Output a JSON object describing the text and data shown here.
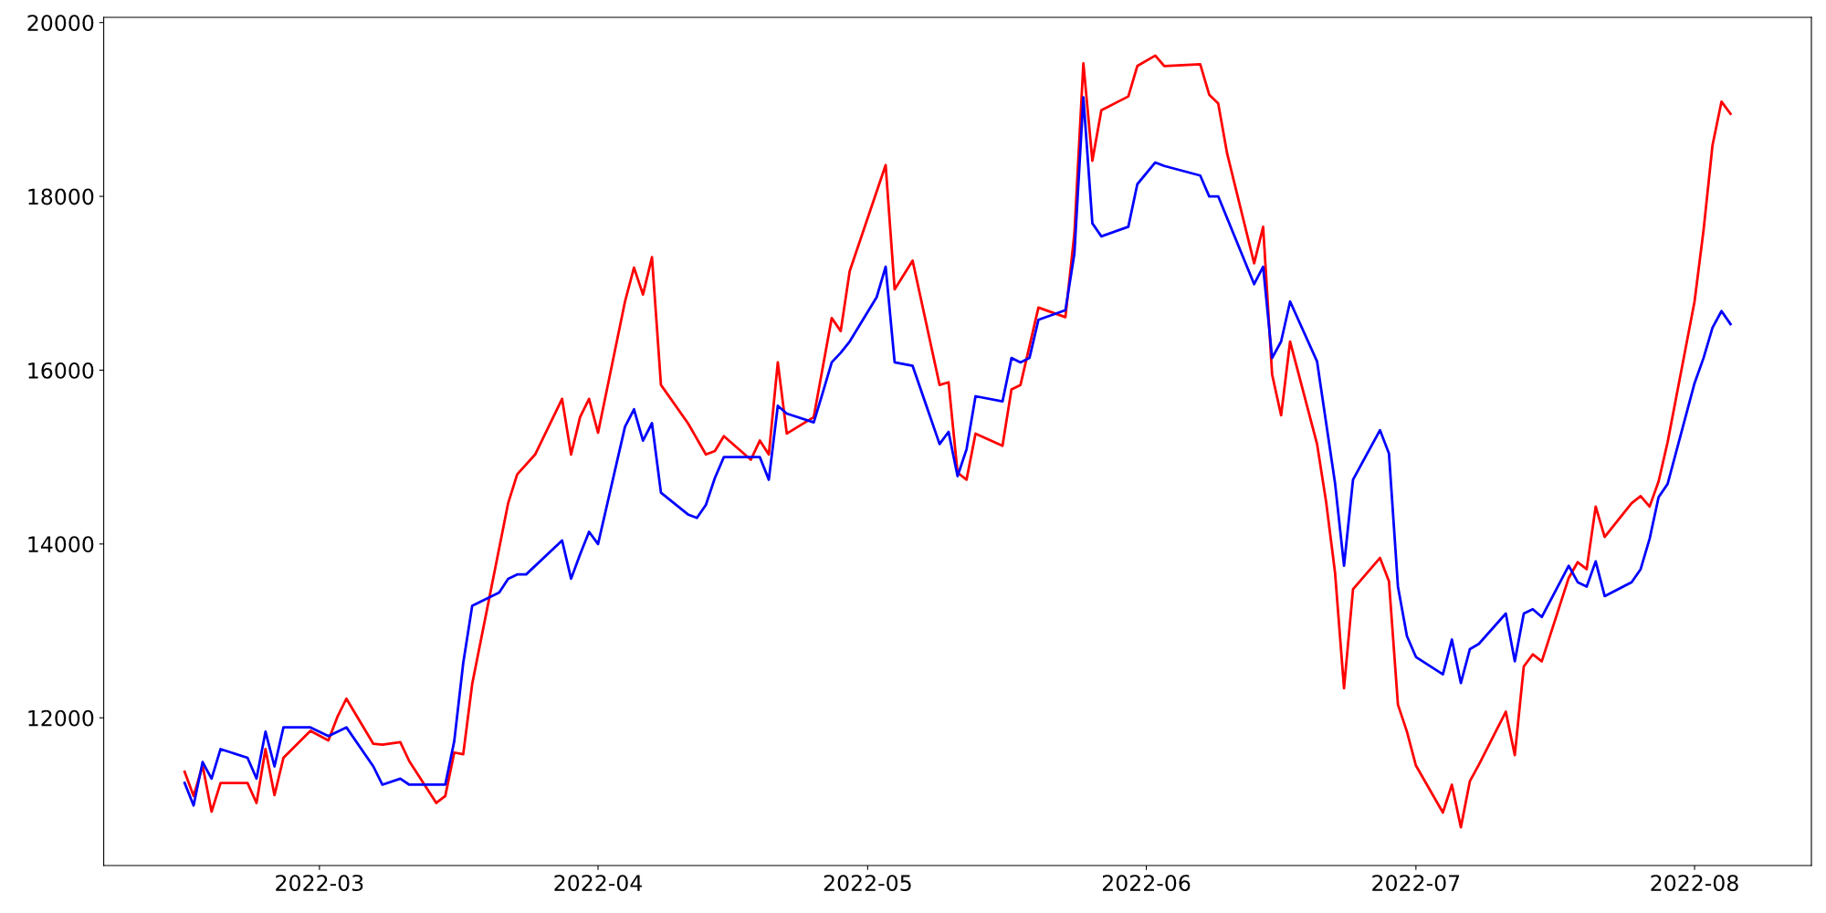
{
  "chart_data": {
    "type": "line",
    "xlim": [
      "2022-02-05",
      "2022-08-14"
    ],
    "ylim": [
      10300,
      20060
    ],
    "xticks": [
      {
        "value": "2022-03-01",
        "label": "2022-03"
      },
      {
        "value": "2022-04-01",
        "label": "2022-04"
      },
      {
        "value": "2022-05-01",
        "label": "2022-05"
      },
      {
        "value": "2022-06-01",
        "label": "2022-06"
      },
      {
        "value": "2022-07-01",
        "label": "2022-07"
      },
      {
        "value": "2022-08-01",
        "label": "2022-08"
      }
    ],
    "yticks": [
      12000,
      14000,
      16000,
      18000,
      20000
    ],
    "grid": false,
    "marker": "none",
    "line_style": "solid",
    "series": [
      {
        "color": "#ff0000",
        "x": [
          "2022-02-14",
          "2022-02-15",
          "2022-02-16",
          "2022-02-17",
          "2022-02-18",
          "2022-02-21",
          "2022-02-22",
          "2022-02-23",
          "2022-02-24",
          "2022-02-25",
          "2022-02-28",
          "2022-03-02",
          "2022-03-03",
          "2022-03-04",
          "2022-03-07",
          "2022-03-08",
          "2022-03-10",
          "2022-03-11",
          "2022-03-14",
          "2022-03-15",
          "2022-03-16",
          "2022-03-17",
          "2022-03-18",
          "2022-03-22",
          "2022-03-23",
          "2022-03-25",
          "2022-03-28",
          "2022-03-29",
          "2022-03-30",
          "2022-03-31",
          "2022-04-01",
          "2022-04-04",
          "2022-04-05",
          "2022-04-06",
          "2022-04-07",
          "2022-04-08",
          "2022-04-11",
          "2022-04-13",
          "2022-04-14",
          "2022-04-15",
          "2022-04-18",
          "2022-04-19",
          "2022-04-20",
          "2022-04-21",
          "2022-04-22",
          "2022-04-25",
          "2022-04-27",
          "2022-04-28",
          "2022-04-29",
          "2022-05-03",
          "2022-05-04",
          "2022-05-06",
          "2022-05-09",
          "2022-05-10",
          "2022-05-11",
          "2022-05-12",
          "2022-05-13",
          "2022-05-16",
          "2022-05-17",
          "2022-05-18",
          "2022-05-20",
          "2022-05-23",
          "2022-05-24",
          "2022-05-25",
          "2022-05-26",
          "2022-05-27",
          "2022-05-30",
          "2022-05-31",
          "2022-06-02",
          "2022-06-03",
          "2022-06-07",
          "2022-06-08",
          "2022-06-09",
          "2022-06-10",
          "2022-06-13",
          "2022-06-14",
          "2022-06-15",
          "2022-06-16",
          "2022-06-17",
          "2022-06-20",
          "2022-06-21",
          "2022-06-22",
          "2022-06-23",
          "2022-06-24",
          "2022-06-27",
          "2022-06-28",
          "2022-06-29",
          "2022-06-30",
          "2022-07-01",
          "2022-07-04",
          "2022-07-05",
          "2022-07-06",
          "2022-07-07",
          "2022-07-08",
          "2022-07-11",
          "2022-07-12",
          "2022-07-13",
          "2022-07-14",
          "2022-07-15",
          "2022-07-18",
          "2022-07-19",
          "2022-07-20",
          "2022-07-21",
          "2022-07-22",
          "2022-07-25",
          "2022-07-26",
          "2022-07-27",
          "2022-07-28",
          "2022-07-29",
          "2022-08-01",
          "2022-08-02",
          "2022-08-03",
          "2022-08-04",
          "2022-08-05"
        ],
        "values": [
          11380,
          11100,
          11450,
          10920,
          11250,
          11250,
          11020,
          11640,
          11110,
          11540,
          11850,
          11740,
          12010,
          12220,
          11700,
          11690,
          11720,
          11500,
          11020,
          11100,
          11600,
          11580,
          12390,
          14470,
          14800,
          15030,
          15670,
          15030,
          15460,
          15670,
          15280,
          16790,
          17180,
          16870,
          17300,
          15830,
          15390,
          15030,
          15070,
          15240,
          14970,
          15190,
          15030,
          16090,
          15270,
          15460,
          16600,
          16450,
          17140,
          18360,
          16930,
          17260,
          15830,
          15860,
          14820,
          14740,
          15270,
          15130,
          15780,
          15830,
          16720,
          16610,
          17570,
          19530,
          18410,
          18990,
          19150,
          19500,
          19620,
          19500,
          19520,
          19170,
          19070,
          18490,
          17230,
          17650,
          15950,
          15480,
          16330,
          15150,
          14490,
          13670,
          12340,
          13480,
          13840,
          13570,
          12150,
          11840,
          11450,
          10910,
          11230,
          10740,
          11270,
          11460,
          12070,
          11570,
          12590,
          12730,
          12650,
          13610,
          13790,
          13710,
          14430,
          14080,
          14470,
          14550,
          14430,
          14720,
          15170,
          16790,
          17610,
          18590,
          19090,
          18950
        ]
      },
      {
        "color": "#0000ff",
        "x": [
          "2022-02-14",
          "2022-02-15",
          "2022-02-16",
          "2022-02-17",
          "2022-02-18",
          "2022-02-21",
          "2022-02-22",
          "2022-02-23",
          "2022-02-24",
          "2022-02-25",
          "2022-02-28",
          "2022-03-02",
          "2022-03-04",
          "2022-03-07",
          "2022-03-08",
          "2022-03-10",
          "2022-03-11",
          "2022-03-15",
          "2022-03-16",
          "2022-03-17",
          "2022-03-18",
          "2022-03-21",
          "2022-03-22",
          "2022-03-23",
          "2022-03-24",
          "2022-03-28",
          "2022-03-29",
          "2022-03-30",
          "2022-03-31",
          "2022-04-01",
          "2022-04-04",
          "2022-04-05",
          "2022-04-06",
          "2022-04-07",
          "2022-04-08",
          "2022-04-11",
          "2022-04-12",
          "2022-04-13",
          "2022-04-14",
          "2022-04-15",
          "2022-04-19",
          "2022-04-20",
          "2022-04-21",
          "2022-04-22",
          "2022-04-25",
          "2022-04-26",
          "2022-04-27",
          "2022-04-28",
          "2022-04-29",
          "2022-05-02",
          "2022-05-03",
          "2022-05-04",
          "2022-05-06",
          "2022-05-09",
          "2022-05-10",
          "2022-05-11",
          "2022-05-12",
          "2022-05-13",
          "2022-05-16",
          "2022-05-17",
          "2022-05-18",
          "2022-05-19",
          "2022-05-20",
          "2022-05-23",
          "2022-05-24",
          "2022-05-25",
          "2022-05-26",
          "2022-05-27",
          "2022-05-30",
          "2022-05-31",
          "2022-06-02",
          "2022-06-03",
          "2022-06-07",
          "2022-06-08",
          "2022-06-09",
          "2022-06-13",
          "2022-06-14",
          "2022-06-15",
          "2022-06-16",
          "2022-06-17",
          "2022-06-20",
          "2022-06-22",
          "2022-06-23",
          "2022-06-24",
          "2022-06-27",
          "2022-06-28",
          "2022-06-29",
          "2022-06-30",
          "2022-07-01",
          "2022-07-04",
          "2022-07-05",
          "2022-07-06",
          "2022-07-07",
          "2022-07-08",
          "2022-07-11",
          "2022-07-12",
          "2022-07-13",
          "2022-07-14",
          "2022-07-15",
          "2022-07-18",
          "2022-07-19",
          "2022-07-20",
          "2022-07-21",
          "2022-07-22",
          "2022-07-25",
          "2022-07-26",
          "2022-07-27",
          "2022-07-28",
          "2022-07-29",
          "2022-08-01",
          "2022-08-02",
          "2022-08-03",
          "2022-08-04",
          "2022-08-05"
        ],
        "values": [
          11250,
          10990,
          11490,
          11300,
          11640,
          11540,
          11300,
          11840,
          11440,
          11890,
          11890,
          11790,
          11890,
          11440,
          11230,
          11300,
          11230,
          11230,
          11730,
          12630,
          13290,
          13440,
          13600,
          13650,
          13650,
          14040,
          13600,
          13880,
          14140,
          14000,
          15350,
          15550,
          15190,
          15390,
          14590,
          14340,
          14300,
          14450,
          14760,
          15000,
          15000,
          14740,
          15590,
          15500,
          15400,
          15740,
          16090,
          16200,
          16330,
          16840,
          17190,
          16090,
          16050,
          15150,
          15290,
          14780,
          15090,
          15700,
          15640,
          16140,
          16090,
          16140,
          16580,
          16690,
          17340,
          19140,
          17690,
          17540,
          17650,
          18140,
          18390,
          18350,
          18240,
          18000,
          18000,
          16990,
          17190,
          16140,
          16330,
          16790,
          16100,
          14700,
          13750,
          14740,
          15310,
          15040,
          13510,
          12940,
          12700,
          12500,
          12900,
          12400,
          12790,
          12850,
          13200,
          12650,
          13200,
          13250,
          13160,
          13750,
          13560,
          13510,
          13800,
          13400,
          13560,
          13710,
          14060,
          14540,
          14690,
          15850,
          16140,
          16490,
          16680,
          16530
        ]
      }
    ]
  }
}
